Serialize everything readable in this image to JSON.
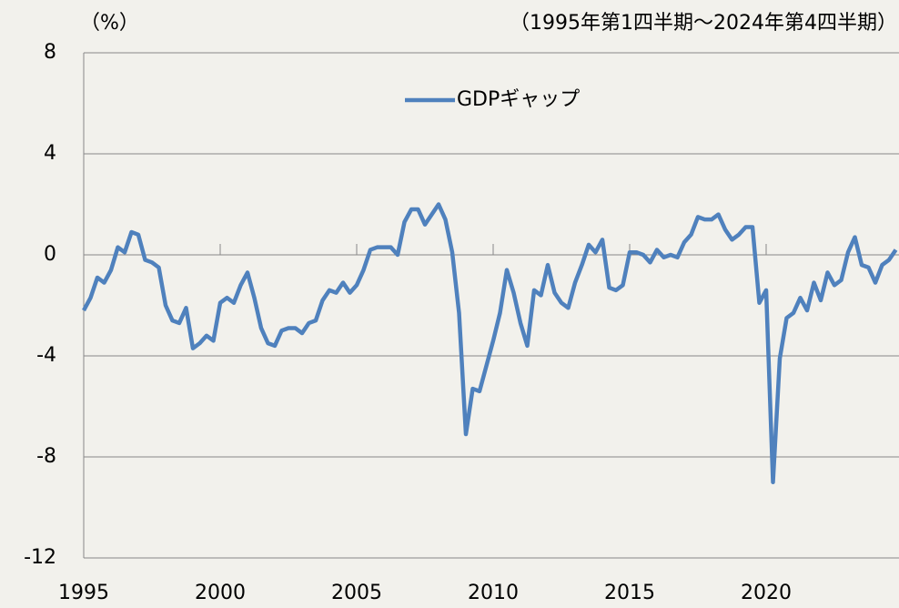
{
  "chart_data": {
    "type": "line",
    "unit_label": "（%）",
    "subtitle": "（1995年第1四半期～2024年第4四半期）",
    "x": [
      1995,
      1995.25,
      1995.5,
      1995.75,
      1996,
      1996.25,
      1996.5,
      1996.75,
      1997,
      1997.25,
      1997.5,
      1997.75,
      1998,
      1998.25,
      1998.5,
      1998.75,
      1999,
      1999.25,
      1999.5,
      1999.75,
      2000,
      2000.25,
      2000.5,
      2000.75,
      2001,
      2001.25,
      2001.5,
      2001.75,
      2002,
      2002.25,
      2002.5,
      2002.75,
      2003,
      2003.25,
      2003.5,
      2003.75,
      2004,
      2004.25,
      2004.5,
      2004.75,
      2005,
      2005.25,
      2005.5,
      2005.75,
      2006,
      2006.25,
      2006.5,
      2006.75,
      2007,
      2007.25,
      2007.5,
      2007.75,
      2008,
      2008.25,
      2008.5,
      2008.75,
      2009,
      2009.25,
      2009.5,
      2009.75,
      2010,
      2010.25,
      2010.5,
      2010.75,
      2011,
      2011.25,
      2011.5,
      2011.75,
      2012,
      2012.25,
      2012.5,
      2012.75,
      2013,
      2013.25,
      2013.5,
      2013.75,
      2014,
      2014.25,
      2014.5,
      2014.75,
      2015,
      2015.25,
      2015.5,
      2015.75,
      2016,
      2016.25,
      2016.5,
      2016.75,
      2017,
      2017.25,
      2017.5,
      2017.75,
      2018,
      2018.25,
      2018.5,
      2018.75,
      2019,
      2019.25,
      2019.5,
      2019.75,
      2020,
      2020.25,
      2020.5,
      2020.75,
      2021,
      2021.25,
      2021.5,
      2021.75,
      2022,
      2022.25,
      2022.5,
      2022.75,
      2023,
      2023.25,
      2023.5,
      2023.75,
      2024,
      2024.25,
      2024.5,
      2024.75
    ],
    "series": [
      {
        "name": "GDPギャップ",
        "color": "#4f81bd",
        "values": [
          -2.2,
          -1.7,
          -0.9,
          -1.1,
          -0.6,
          0.3,
          0.1,
          0.9,
          0.8,
          -0.2,
          -0.3,
          -0.5,
          -2.0,
          -2.6,
          -2.7,
          -2.1,
          -3.7,
          -3.5,
          -3.2,
          -3.4,
          -1.9,
          -1.7,
          -1.9,
          -1.2,
          -0.7,
          -1.7,
          -2.9,
          -3.5,
          -3.6,
          -3.0,
          -2.9,
          -2.9,
          -3.1,
          -2.7,
          -2.6,
          -1.8,
          -1.4,
          -1.5,
          -1.1,
          -1.5,
          -1.2,
          -0.6,
          0.2,
          0.3,
          0.3,
          0.3,
          0.0,
          1.3,
          1.8,
          1.8,
          1.2,
          1.6,
          2.0,
          1.4,
          0.1,
          -2.3,
          -7.1,
          -5.3,
          -5.4,
          -4.4,
          -3.4,
          -2.3,
          -0.6,
          -1.5,
          -2.7,
          -3.6,
          -1.4,
          -1.6,
          -0.4,
          -1.5,
          -1.9,
          -2.1,
          -1.1,
          -0.4,
          0.4,
          0.1,
          0.6,
          -1.3,
          -1.4,
          -1.2,
          0.1,
          0.1,
          0.0,
          -0.3,
          0.2,
          -0.1,
          0.0,
          -0.1,
          0.5,
          0.8,
          1.5,
          1.4,
          1.4,
          1.6,
          1.0,
          0.6,
          0.8,
          1.1,
          1.1,
          -1.9,
          -1.4,
          -9.0,
          -4.1,
          -2.5,
          -2.3,
          -1.7,
          -2.2,
          -1.1,
          -1.8,
          -0.7,
          -1.2,
          -1.0,
          0.1,
          0.7,
          -0.4,
          -0.5,
          -1.1,
          -0.4,
          -0.2,
          0.2
        ]
      }
    ],
    "xlim": [
      1995,
      2025
    ],
    "xticks": [
      1995,
      2000,
      2005,
      2010,
      2015,
      2020
    ],
    "ylim": [
      -12,
      8
    ],
    "yticks": [
      8,
      4,
      0,
      -4,
      -8,
      -12
    ],
    "grid": true
  }
}
